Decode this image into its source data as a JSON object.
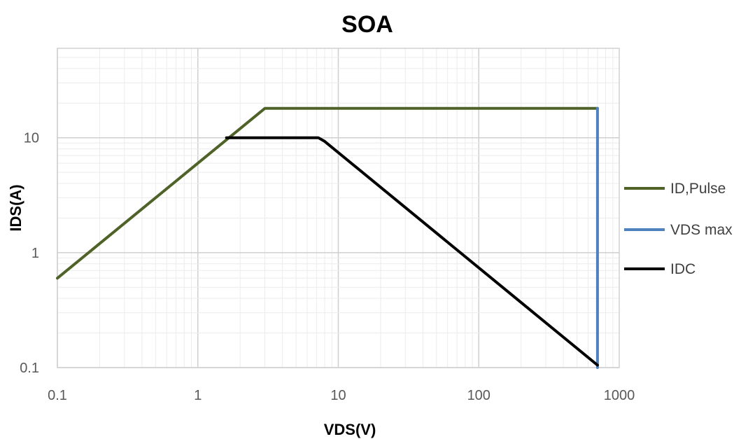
{
  "chart_data": {
    "type": "line",
    "title": "SOA",
    "xlabel": "VDS(V)",
    "ylabel": "IDS(A)",
    "xscale": "log",
    "yscale": "log",
    "xlim": [
      0.1,
      1000
    ],
    "ylim": [
      0.1,
      60
    ],
    "x_ticks": [
      "0.1",
      "1",
      "10",
      "100",
      "1000"
    ],
    "y_ticks": [
      "0.1",
      "1",
      "10"
    ],
    "grid": true,
    "legend_position": "right",
    "series": [
      {
        "name": "ID,Pulse",
        "color": "#4f6228",
        "points": [
          [
            0.1,
            0.6
          ],
          [
            3,
            18
          ],
          [
            700,
            18
          ]
        ]
      },
      {
        "name": "VDS max",
        "color": "#4f81bd",
        "points": [
          [
            700,
            18
          ],
          [
            700,
            0.1
          ]
        ]
      },
      {
        "name": "IDC",
        "color": "#000000",
        "points": [
          [
            1.6,
            10
          ],
          [
            6.5,
            10
          ],
          [
            7.2,
            10
          ],
          [
            8,
            9.3
          ],
          [
            700,
            0.105
          ]
        ]
      }
    ]
  }
}
